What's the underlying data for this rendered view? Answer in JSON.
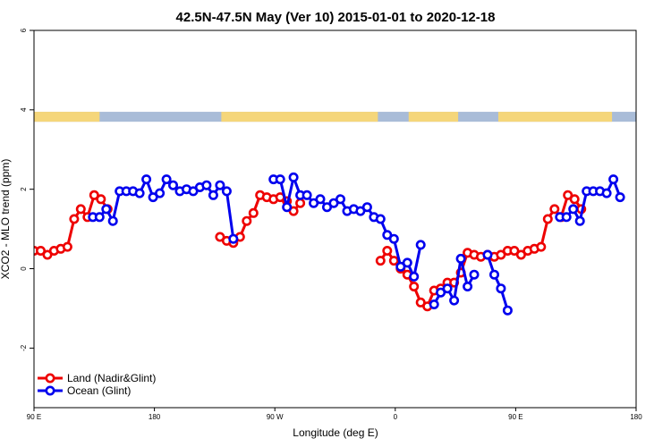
{
  "chart_data": {
    "type": "line",
    "title": "42.5N-47.5N May (Ver 10)   2015-01-01 to 2020-12-18",
    "xlabel": "Longitude (deg E)",
    "ylabel": "XCO2 - MLO trend (ppm)",
    "xlim": [
      90,
      450
    ],
    "ylim": [
      -3.5,
      6
    ],
    "x_ticks": [
      {
        "value": 90,
        "label": "90 E"
      },
      {
        "value": 180,
        "label": "180"
      },
      {
        "value": 270,
        "label": "90 W"
      },
      {
        "value": 360,
        "label": "0"
      },
      {
        "value": 450,
        "label": "90 E"
      },
      {
        "value": 540,
        "label": "180"
      }
    ],
    "y_ticks": [
      {
        "value": -2,
        "label": "-2"
      },
      {
        "value": 0,
        "label": "0"
      },
      {
        "value": 2,
        "label": "2"
      },
      {
        "value": 4,
        "label": "4"
      },
      {
        "value": 6,
        "label": "6"
      }
    ],
    "legend_position": "bottom-left",
    "land_band": {
      "y_range": [
        3.7,
        3.95
      ],
      "land_color": "#f5d67a",
      "ocean_color": "#a9bcd8",
      "land_spans": [
        [
          90,
          139
        ],
        [
          230,
          347
        ],
        [
          370,
          407
        ],
        [
          437,
          522
        ]
      ]
    },
    "series": [
      {
        "name": "Land (Nadir&Glint)",
        "color": "#ee0000",
        "points": [
          [
            90,
            0.45
          ],
          [
            95,
            0.45
          ],
          [
            100,
            0.35
          ],
          [
            105,
            0.45
          ],
          [
            110,
            0.5
          ],
          [
            115,
            0.55
          ],
          [
            120,
            1.25
          ],
          [
            125,
            1.5
          ],
          [
            130,
            1.3
          ],
          [
            135,
            1.85
          ],
          [
            140,
            1.75
          ],
          [
            145,
            1.5
          ],
          null,
          [
            229,
            0.8
          ],
          [
            234,
            0.7
          ],
          [
            239,
            0.65
          ],
          [
            244,
            0.8
          ],
          [
            249,
            1.2
          ],
          [
            254,
            1.4
          ],
          [
            259,
            1.85
          ],
          [
            264,
            1.8
          ],
          [
            269,
            1.75
          ],
          [
            274,
            1.8
          ],
          [
            279,
            1.7
          ],
          [
            284,
            1.45
          ],
          [
            289,
            1.65
          ],
          null,
          [
            349,
            0.2
          ],
          [
            354,
            0.45
          ],
          [
            359,
            0.2
          ],
          [
            364,
            0.0
          ],
          [
            369,
            -0.15
          ],
          [
            374,
            -0.45
          ],
          [
            379,
            -0.85
          ],
          [
            384,
            -0.95
          ],
          [
            389,
            -0.55
          ],
          [
            394,
            -0.5
          ],
          [
            399,
            -0.35
          ],
          [
            404,
            -0.35
          ],
          [
            409,
            -0.1
          ],
          [
            414,
            0.4
          ],
          [
            419,
            0.35
          ],
          [
            424,
            0.3
          ],
          [
            429,
            0.35
          ],
          [
            434,
            0.3
          ],
          [
            439,
            0.35
          ],
          [
            444,
            0.45
          ],
          [
            449,
            0.45
          ],
          [
            454,
            0.35
          ],
          [
            459,
            0.45
          ],
          [
            464,
            0.5
          ],
          [
            469,
            0.55
          ],
          [
            474,
            1.25
          ],
          [
            479,
            1.5
          ],
          [
            484,
            1.3
          ],
          [
            489,
            1.85
          ],
          [
            494,
            1.75
          ],
          [
            499,
            1.5
          ]
        ]
      },
      {
        "name": "Ocean (Glint)",
        "color": "#0000ee",
        "points": [
          [
            134,
            1.3
          ],
          [
            139,
            1.3
          ],
          [
            144,
            1.5
          ],
          [
            149,
            1.2
          ],
          [
            154,
            1.95
          ],
          [
            159,
            1.95
          ],
          [
            164,
            1.95
          ],
          [
            169,
            1.9
          ],
          [
            174,
            2.25
          ],
          [
            179,
            1.8
          ],
          [
            184,
            1.9
          ],
          [
            189,
            2.25
          ],
          [
            194,
            2.1
          ],
          [
            199,
            1.95
          ],
          [
            204,
            2.0
          ],
          [
            209,
            1.95
          ],
          [
            214,
            2.05
          ],
          [
            219,
            2.1
          ],
          [
            224,
            1.85
          ],
          [
            229,
            2.1
          ],
          [
            234,
            1.95
          ],
          [
            239,
            0.75
          ],
          null,
          [
            269,
            2.25
          ],
          [
            274,
            2.25
          ],
          [
            279,
            1.55
          ],
          [
            284,
            2.3
          ],
          [
            289,
            1.85
          ],
          [
            294,
            1.85
          ],
          [
            299,
            1.65
          ],
          [
            304,
            1.75
          ],
          [
            309,
            1.55
          ],
          [
            314,
            1.65
          ],
          [
            319,
            1.75
          ],
          [
            324,
            1.45
          ],
          [
            329,
            1.5
          ],
          [
            334,
            1.45
          ],
          [
            339,
            1.55
          ],
          [
            344,
            1.3
          ],
          [
            349,
            1.25
          ],
          [
            354,
            0.85
          ],
          [
            359,
            0.75
          ],
          [
            364,
            0.05
          ],
          [
            369,
            0.15
          ],
          [
            374,
            -0.2
          ],
          [
            379,
            0.6
          ],
          null,
          [
            389,
            -0.9
          ],
          [
            394,
            -0.6
          ],
          [
            399,
            -0.5
          ],
          [
            404,
            -0.8
          ],
          [
            409,
            0.25
          ],
          [
            414,
            -0.45
          ],
          [
            419,
            -0.15
          ],
          null,
          [
            429,
            0.35
          ],
          [
            434,
            -0.15
          ],
          [
            439,
            -0.5
          ],
          [
            444,
            -1.05
          ],
          null,
          [
            483,
            1.3
          ],
          [
            488,
            1.3
          ],
          [
            493,
            1.5
          ],
          [
            498,
            1.2
          ],
          [
            503,
            1.95
          ],
          [
            508,
            1.95
          ],
          [
            513,
            1.95
          ],
          [
            518,
            1.9
          ],
          [
            523,
            2.25
          ],
          [
            528,
            1.8
          ]
        ]
      }
    ]
  }
}
